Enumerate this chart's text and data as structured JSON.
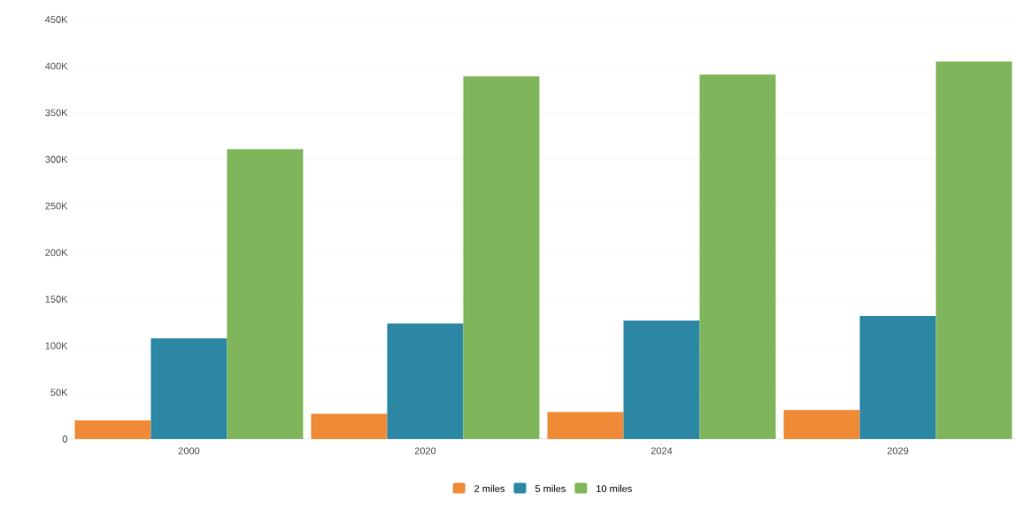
{
  "chart_data": {
    "type": "bar",
    "categories": [
      "2000",
      "2020",
      "2024",
      "2029"
    ],
    "series": [
      {
        "name": "2 miles",
        "color": "#ef8a37",
        "values": [
          20000,
          27000,
          29000,
          31000
        ]
      },
      {
        "name": "5 miles",
        "color": "#2b87a4",
        "values": [
          108000,
          124000,
          127000,
          132000
        ]
      },
      {
        "name": "10 miles",
        "color": "#80b65b",
        "values": [
          311000,
          389000,
          391000,
          405000
        ]
      }
    ],
    "ylim": [
      0,
      450000
    ],
    "yticks": [
      {
        "value": 0,
        "label": "0"
      },
      {
        "value": 50000,
        "label": "50K"
      },
      {
        "value": 100000,
        "label": "100K"
      },
      {
        "value": 150000,
        "label": "150K"
      },
      {
        "value": 200000,
        "label": "200K"
      },
      {
        "value": 250000,
        "label": "250K"
      },
      {
        "value": 300000,
        "label": "300K"
      },
      {
        "value": 350000,
        "label": "350K"
      },
      {
        "value": 400000,
        "label": "400K"
      },
      {
        "value": 450000,
        "label": "450K"
      }
    ],
    "grid": "y",
    "legend": "bottom"
  }
}
